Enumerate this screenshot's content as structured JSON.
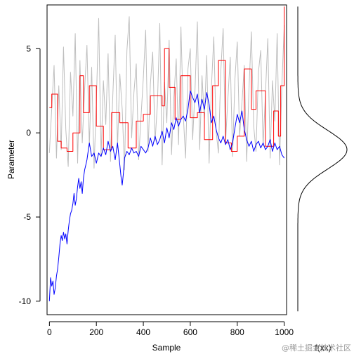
{
  "chart_data": [
    {
      "type": "line",
      "title": "",
      "xlabel": "Sample",
      "ylabel": "Parameter",
      "xlim": [
        -10,
        1010
      ],
      "ylim": [
        -10.8,
        7.6
      ],
      "x_ticks": [
        0,
        200,
        400,
        600,
        800,
        1000
      ],
      "y_ticks": [
        -10,
        -5,
        0,
        5
      ],
      "grid": false,
      "legend": "none",
      "series": [
        {
          "color": "#bebebe",
          "step": false,
          "x": [
            0,
            10,
            20,
            30,
            40,
            50,
            60,
            70,
            80,
            90,
            100,
            110,
            120,
            130,
            140,
            150,
            160,
            170,
            180,
            190,
            200,
            210,
            220,
            230,
            240,
            250,
            260,
            270,
            280,
            290,
            300,
            310,
            320,
            330,
            340,
            350,
            360,
            370,
            380,
            390,
            400,
            410,
            420,
            430,
            440,
            450,
            460,
            470,
            480,
            490,
            500,
            510,
            520,
            530,
            540,
            550,
            560,
            570,
            580,
            590,
            600,
            610,
            620,
            630,
            640,
            650,
            660,
            670,
            680,
            690,
            700,
            710,
            720,
            730,
            740,
            750,
            760,
            770,
            780,
            790,
            800,
            810,
            820,
            830,
            840,
            850,
            860,
            870,
            880,
            890,
            900,
            910,
            920,
            930,
            940,
            950,
            960,
            970,
            980,
            990,
            1000
          ],
          "y": [
            -1.2,
            1.5,
            4.0,
            -1.5,
            2.8,
            -1.0,
            5.1,
            0.2,
            -2.0,
            3.6,
            1.0,
            5.9,
            -1.8,
            4.3,
            -0.6,
            2.6,
            5.2,
            -0.8,
            3.9,
            -2.1,
            1.9,
            6.8,
            -1.4,
            3.1,
            0.5,
            4.7,
            -1.7,
            2.2,
            5.8,
            -0.9,
            3.5,
            1.4,
            -2.2,
            4.9,
            6.9,
            -0.3,
            2.4,
            4.1,
            -1.6,
            0.9,
            3.3,
            6.1,
            -1.1,
            2.9,
            4.8,
            -0.5,
            1.7,
            6.5,
            -1.9,
            3.0,
            0.6,
            5.5,
            -1.3,
            2.1,
            4.4,
            -0.7,
            6.3,
            1.1,
            -1.5,
            3.8,
            5.0,
            -0.4,
            2.5,
            6.6,
            -1.0,
            3.4,
            0.8,
            4.6,
            -1.8,
            2.7,
            5.7,
            0.1,
            -1.2,
            3.7,
            6.2,
            -0.6,
            2.0,
            4.5,
            -1.4,
            3.2,
            5.4,
            -0.2,
            1.8,
            4.0,
            -1.7,
            2.6,
            6.0,
            0.4,
            -1.1,
            3.6,
            4.9,
            -0.8,
            2.3,
            5.6,
            -1.5,
            3.1,
            0.7,
            5.9,
            -1.9,
            2.8,
            6.4
          ]
        },
        {
          "color": "#ff0000",
          "step": true,
          "x": [
            0,
            10,
            35,
            50,
            75,
            100,
            130,
            145,
            170,
            200,
            230,
            265,
            300,
            335,
            370,
            400,
            430,
            480,
            490,
            510,
            535,
            560,
            600,
            630,
            660,
            695,
            720,
            750,
            775,
            800,
            830,
            860,
            880,
            920,
            955,
            975,
            985,
            1000
          ],
          "y": [
            1.5,
            2.3,
            -0.5,
            -0.9,
            -1.1,
            0.0,
            3.4,
            1.2,
            2.8,
            0.4,
            -1.0,
            1.2,
            0.6,
            -0.9,
            0.7,
            1.1,
            2.2,
            1.6,
            5.0,
            2.7,
            0.8,
            3.4,
            0.9,
            1.2,
            -0.4,
            2.8,
            4.3,
            -0.6,
            -1.1,
            -0.2,
            3.8,
            1.4,
            2.5,
            -0.8,
            1.3,
            -0.2,
            2.8,
            7.5
          ]
        },
        {
          "color": "#0000ff",
          "step": false,
          "x": [
            0,
            5,
            10,
            15,
            20,
            25,
            30,
            35,
            40,
            45,
            50,
            55,
            60,
            65,
            70,
            75,
            80,
            85,
            90,
            95,
            100,
            105,
            110,
            115,
            120,
            125,
            130,
            135,
            140,
            145,
            150,
            155,
            160,
            170,
            180,
            190,
            200,
            210,
            220,
            230,
            240,
            250,
            260,
            270,
            280,
            290,
            300,
            305,
            310,
            315,
            320,
            330,
            340,
            350,
            360,
            370,
            380,
            390,
            400,
            410,
            420,
            430,
            440,
            450,
            460,
            470,
            480,
            490,
            500,
            510,
            520,
            530,
            540,
            550,
            560,
            570,
            580,
            590,
            600,
            610,
            620,
            630,
            640,
            650,
            660,
            670,
            680,
            690,
            700,
            710,
            720,
            730,
            740,
            750,
            760,
            770,
            780,
            790,
            800,
            810,
            820,
            830,
            840,
            850,
            860,
            870,
            880,
            890,
            900,
            910,
            920,
            930,
            940,
            950,
            960,
            970,
            980,
            990,
            1000
          ],
          "y": [
            -10.0,
            -8.6,
            -9.1,
            -8.8,
            -9.6,
            -9.2,
            -8.5,
            -8.1,
            -7.4,
            -6.6,
            -6.1,
            -6.4,
            -5.9,
            -6.3,
            -6.0,
            -6.6,
            -5.8,
            -5.2,
            -4.8,
            -4.6,
            -4.2,
            -3.6,
            -4.3,
            -3.9,
            -3.2,
            -2.7,
            -3.3,
            -2.9,
            -3.6,
            -2.7,
            -2.2,
            -1.9,
            -1.6,
            -0.6,
            -1.4,
            -1.2,
            -1.8,
            -1.2,
            -1.4,
            -0.9,
            -1.3,
            -0.5,
            -1.1,
            -0.8,
            -1.6,
            -0.6,
            -1.9,
            -2.6,
            -3.1,
            -2.4,
            -1.5,
            -1.1,
            -1.3,
            -0.9,
            -1.2,
            -1.1,
            -1.4,
            -0.8,
            -1.0,
            -1.2,
            -0.9,
            -0.3,
            -0.8,
            -0.2,
            -0.7,
            -0.4,
            0.1,
            -0.6,
            0.3,
            -0.3,
            0.6,
            0.2,
            0.9,
            0.4,
            0.8,
            1.0,
            0.7,
            1.4,
            2.5,
            2.1,
            1.8,
            2.3,
            1.2,
            2.0,
            1.4,
            2.4,
            1.7,
            0.6,
            1.0,
            0.2,
            -0.3,
            -0.6,
            -0.2,
            -0.7,
            -0.4,
            -1.0,
            -0.6,
            0.3,
            1.1,
            0.6,
            1.3,
            0.2,
            -0.4,
            -0.8,
            -0.5,
            -1.1,
            -0.7,
            -0.5,
            -0.9,
            -0.6,
            -1.0,
            -0.8,
            -0.4,
            -1.1,
            -0.6,
            -1.0,
            -0.8,
            -1.3,
            -1.5
          ]
        }
      ]
    },
    {
      "type": "line",
      "title": "",
      "xlabel": "f(xx)",
      "ylabel": "",
      "note_orientation": "density drawn sideways, sharing the Parameter axis",
      "series": [
        {
          "color": "#000000",
          "density_mean": -1.0,
          "density_sd": 1.15,
          "y_range": [
            -10.6,
            7.5
          ]
        }
      ]
    }
  ],
  "watermark_text": "@稀土掘金技术社区"
}
